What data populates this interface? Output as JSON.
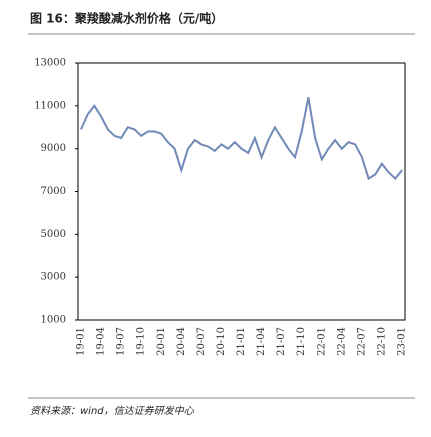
{
  "chart_data": {
    "type": "line",
    "title": "图 16：聚羧酸减水剂价格（元/吨）",
    "source": "资料来源：wind，信达证券研发中心",
    "categories": [
      "19-01",
      null,
      null,
      "19-04",
      null,
      null,
      "19-07",
      null,
      null,
      "19-10",
      null,
      null,
      "20-01",
      null,
      null,
      "20-04",
      null,
      null,
      "20-07",
      null,
      null,
      "20-10",
      null,
      null,
      "21-01",
      null,
      null,
      "21-04",
      null,
      null,
      "21-07",
      null,
      null,
      "21-10",
      null,
      null,
      "22-01",
      null,
      null,
      "22-04",
      null,
      null,
      "22-07",
      null,
      null,
      "22-10",
      null,
      null,
      "23-01"
    ],
    "values": [
      9900,
      10600,
      11000,
      10500,
      9900,
      9600,
      9500,
      10000,
      9900,
      9600,
      9800,
      9800,
      9700,
      9300,
      9000,
      8000,
      9000,
      9400,
      9200,
      9100,
      8900,
      9200,
      9000,
      9300,
      9000,
      8800,
      9500,
      8600,
      9400,
      10000,
      9500,
      9000,
      8600,
      9800,
      11400,
      9500,
      8500,
      9000,
      9400,
      9000,
      9300,
      9200,
      8600,
      7600,
      7800,
      8300,
      7900,
      7600,
      8000
    ],
    "color": "#7189b6",
    "ylim": [
      1000,
      13000
    ],
    "yticks": [
      1000,
      3000,
      5000,
      7000,
      9000,
      11000,
      13000
    ]
  }
}
